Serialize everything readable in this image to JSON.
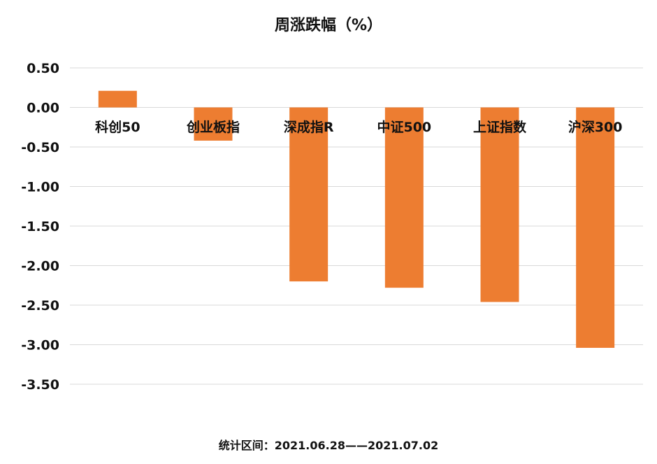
{
  "chart_data": {
    "type": "bar",
    "title": "周涨跌幅（%）",
    "categories": [
      "科创50",
      "创业板指",
      "深成指R",
      "中证500",
      "上证指数",
      "沪深300"
    ],
    "values": [
      0.21,
      -0.42,
      -2.2,
      -2.28,
      -2.46,
      -3.04
    ],
    "ylim": [
      -3.5,
      0.5
    ],
    "yticks": [
      "0.50",
      "0.00",
      "-0.50",
      "-1.00",
      "-1.50",
      "-2.00",
      "-2.50",
      "-3.00",
      "-3.50"
    ],
    "grid": true,
    "bar_color": "#ED7D31",
    "grid_color": "#d9d9d9"
  },
  "footer": "统计区间：2021.06.28——2021.07.02"
}
